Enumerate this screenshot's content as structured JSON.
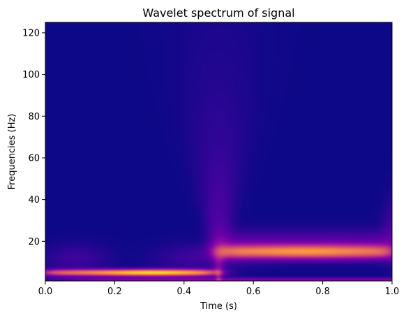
{
  "chart_data": {
    "type": "heatmap",
    "title": "Wavelet spectrum of signal",
    "xlabel": "Time (s)",
    "ylabel": "Frequencies (Hz)",
    "xlim": [
      0.0,
      1.0
    ],
    "ylim": [
      1,
      125
    ],
    "x_ticks": [
      0.0,
      0.2,
      0.4,
      0.6,
      0.8,
      1.0
    ],
    "x_tick_labels": [
      "0.0",
      "0.2",
      "0.4",
      "0.6",
      "0.8",
      "1.0"
    ],
    "y_ticks": [
      20,
      40,
      60,
      80,
      100,
      120
    ],
    "y_tick_labels": [
      "20",
      "40",
      "60",
      "80",
      "100",
      "120"
    ],
    "colormap": "plasma",
    "background_color": "#0d0887",
    "grid": false,
    "bands": [
      {
        "t_start": 0.0,
        "t_end": 0.5,
        "frequency": 5,
        "peak_intensity": 0.92,
        "peak_time": 0.3
      },
      {
        "t_start": 0.5,
        "t_end": 1.0,
        "frequency": 15,
        "peak_intensity": 0.62,
        "peak_time": 0.75
      }
    ]
  }
}
